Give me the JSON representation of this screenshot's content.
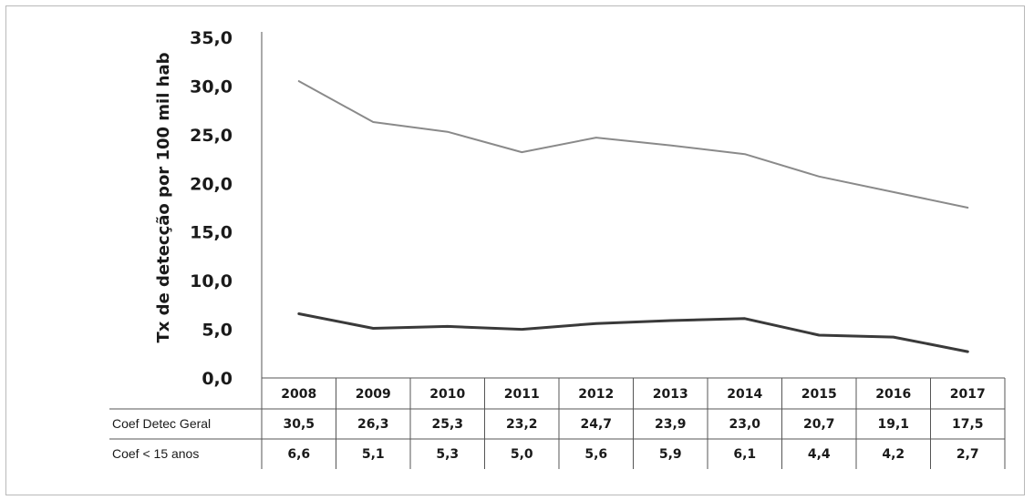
{
  "chart_data": {
    "type": "line",
    "ylabel": "Tx de detecção por 100 mil hab",
    "ylim": [
      0,
      35
    ],
    "yticks": [
      "0,0",
      "5,0",
      "10,0",
      "15,0",
      "20,0",
      "25,0",
      "30,0",
      "35,0"
    ],
    "ytick_values": [
      0,
      5,
      10,
      15,
      20,
      25,
      30,
      35
    ],
    "categories": [
      "2008",
      "2009",
      "2010",
      "2011",
      "2012",
      "2013",
      "2014",
      "2015",
      "2016",
      "2017"
    ],
    "grid": false,
    "legend": "data-table-below",
    "series": [
      {
        "name": "Coef Detec Geral",
        "values": [
          30.5,
          26.3,
          25.3,
          23.2,
          24.7,
          23.9,
          23.0,
          20.7,
          19.1,
          17.5
        ],
        "labels": [
          "30,5",
          "26,3",
          "25,3",
          "23,2",
          "24,7",
          "23,9",
          "23,0",
          "20,7",
          "19,1",
          "17,5"
        ],
        "color": "#8a8a8a"
      },
      {
        "name": "Coef < 15 anos",
        "values": [
          6.6,
          5.1,
          5.3,
          5.0,
          5.6,
          5.9,
          6.1,
          4.4,
          4.2,
          2.7
        ],
        "labels": [
          "6,6",
          "5,1",
          "5,3",
          "5,0",
          "5,6",
          "5,9",
          "6,1",
          "4,4",
          "4,2",
          "2,7"
        ],
        "color": "#3a3a3a"
      }
    ]
  }
}
